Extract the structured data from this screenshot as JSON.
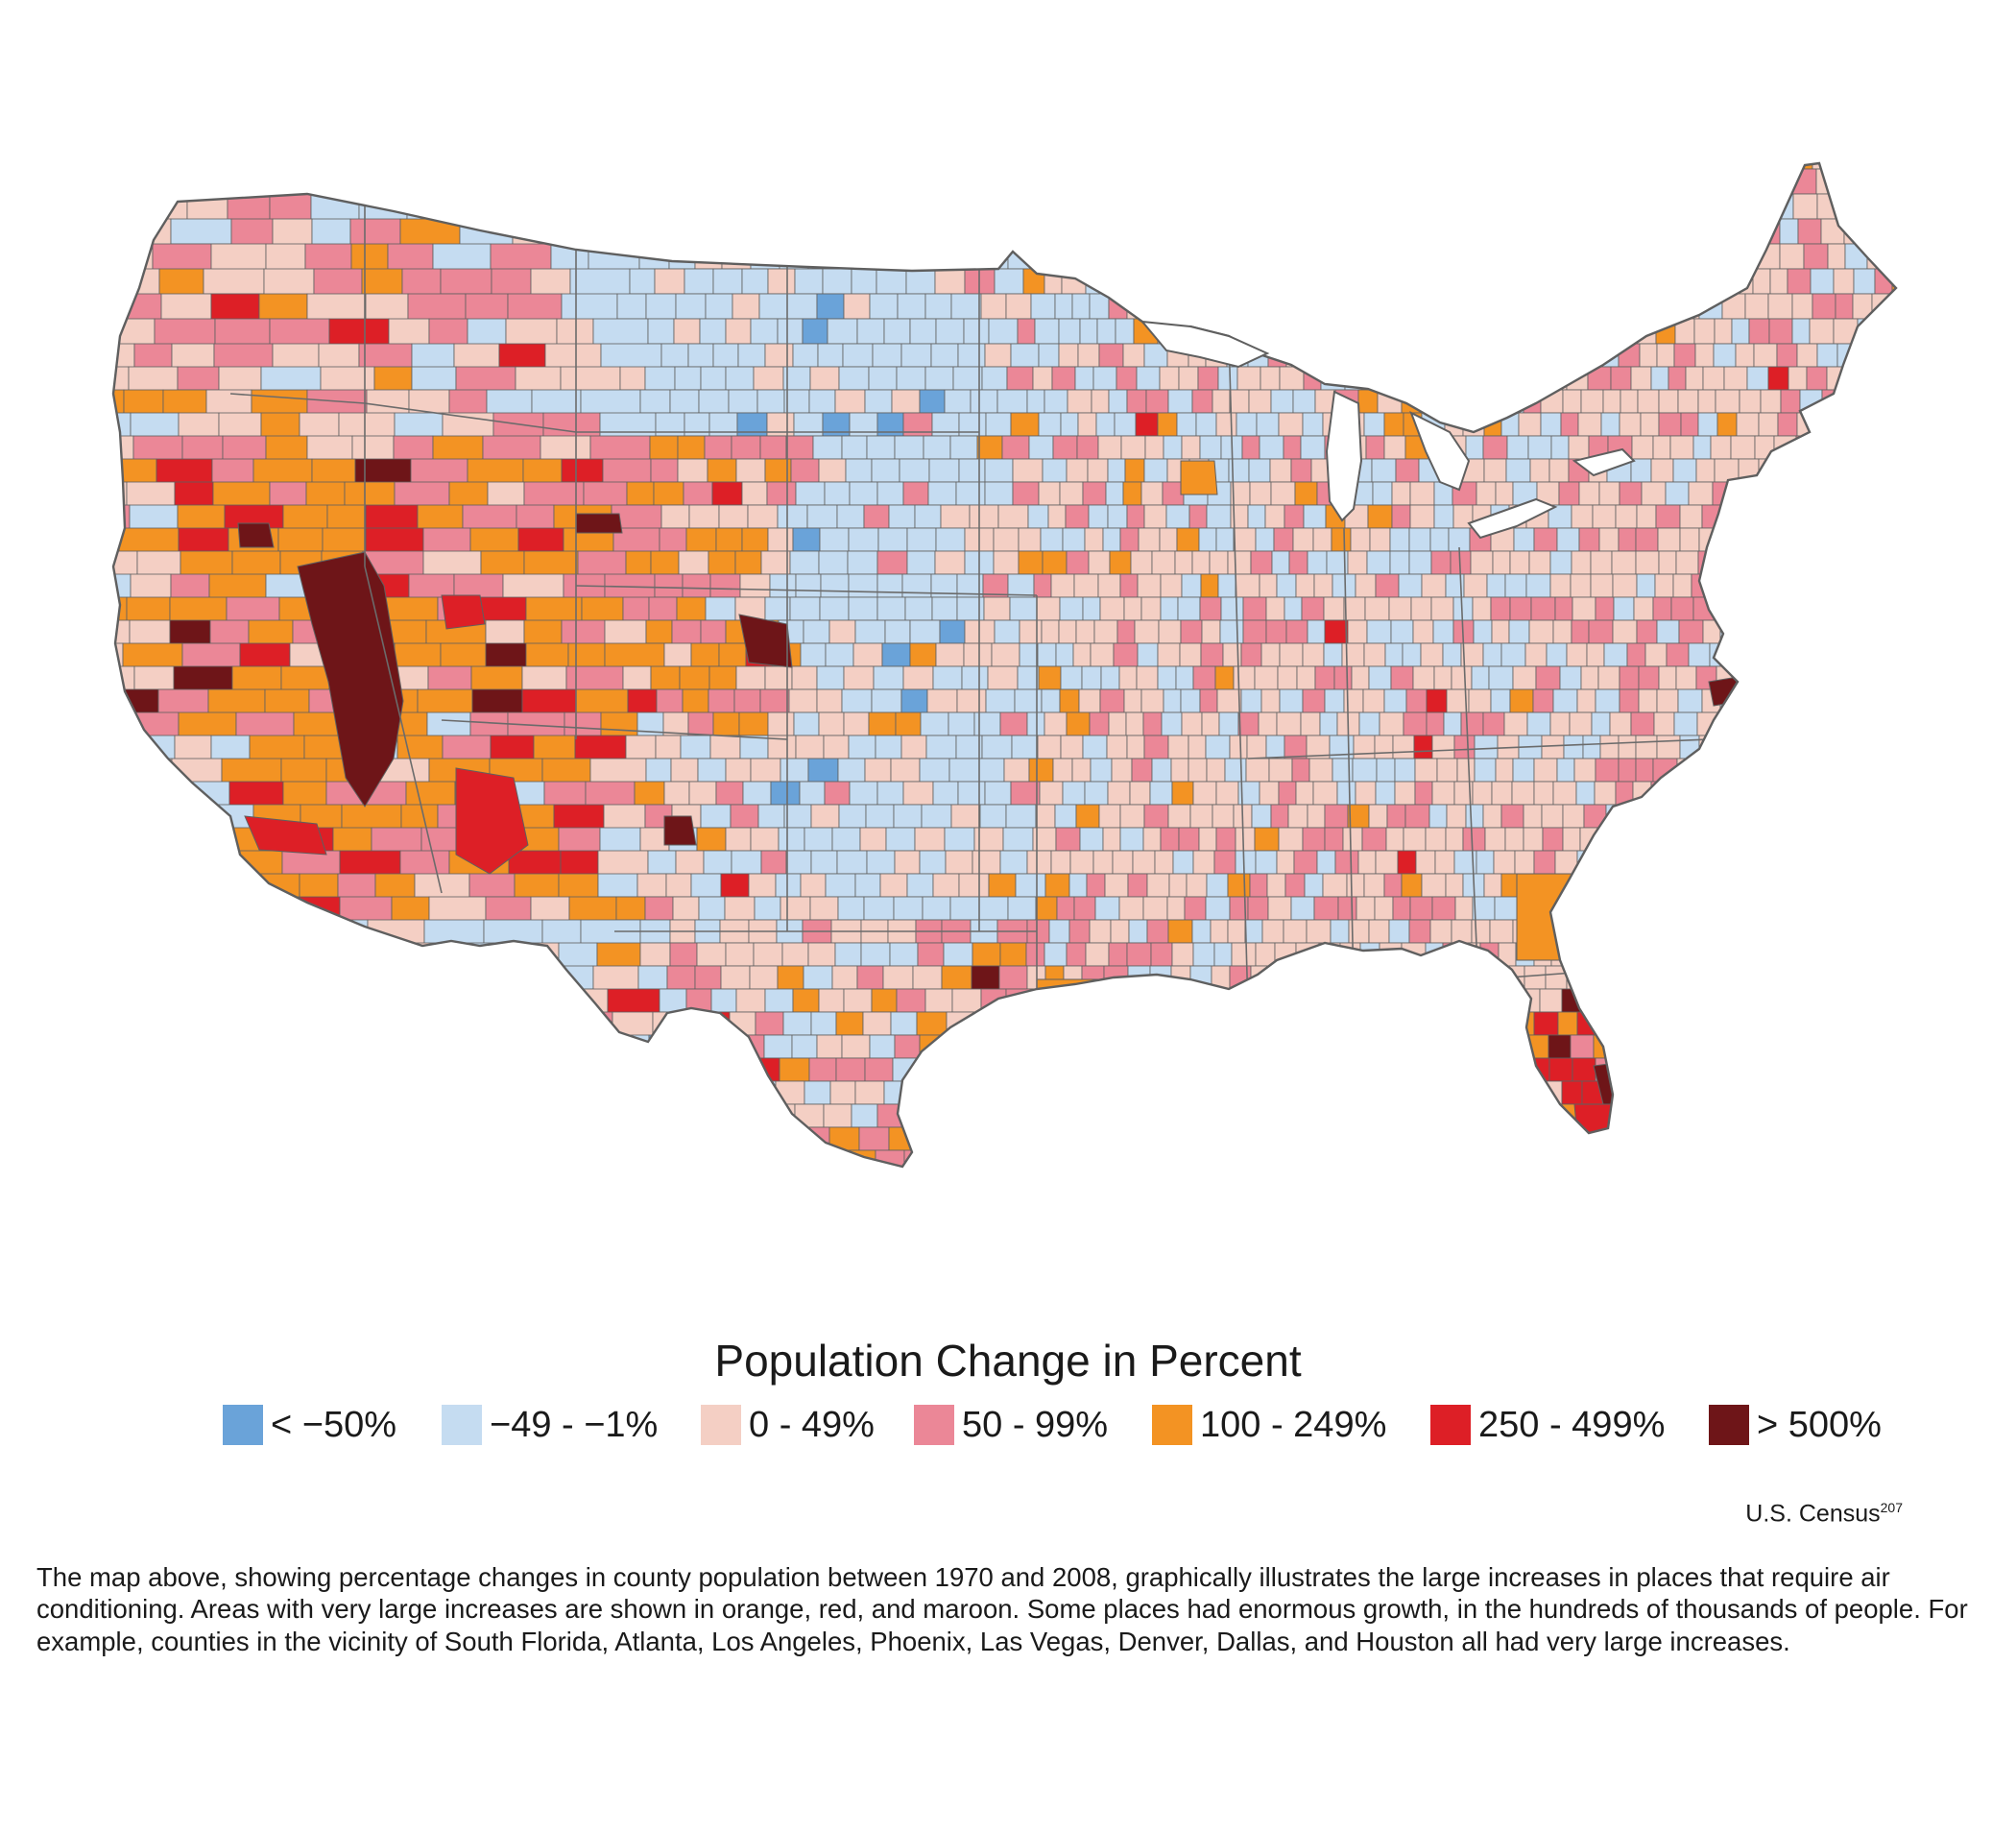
{
  "map": {
    "country_shape": "contiguous-united-states-counties",
    "border_color": "#5f5f5f",
    "land_default_color": "#f4cfc4"
  },
  "legend": {
    "title": "Population Change in Percent",
    "items": [
      {
        "label": "< −50%",
        "color": "#6aa3d9"
      },
      {
        "label": "−49 - −1%",
        "color": "#c5dcf1"
      },
      {
        "label": "0 - 49%",
        "color": "#f4cfc4"
      },
      {
        "label": "50 - 99%",
        "color": "#eb8797"
      },
      {
        "label": "100 - 249%",
        "color": "#f39323"
      },
      {
        "label": "250 - 499%",
        "color": "#dd1f26"
      },
      {
        "label": "> 500%",
        "color": "#6e1518"
      }
    ]
  },
  "source": {
    "text": "U.S. Census",
    "superscript": "207"
  },
  "caption": "The map above, showing percentage changes in county population between 1970 and 2008, graphically illustrates the large increases in places that require air conditioning.  Areas with very large increases are shown in orange, red, and maroon. Some places had enormous growth, in the hundreds of thousands of people. For example, counties in the vicinity of South Florida, Atlanta, Los Angeles, Phoenix, Las Vegas, Denver, Dallas, and Houston all had very large increases."
}
